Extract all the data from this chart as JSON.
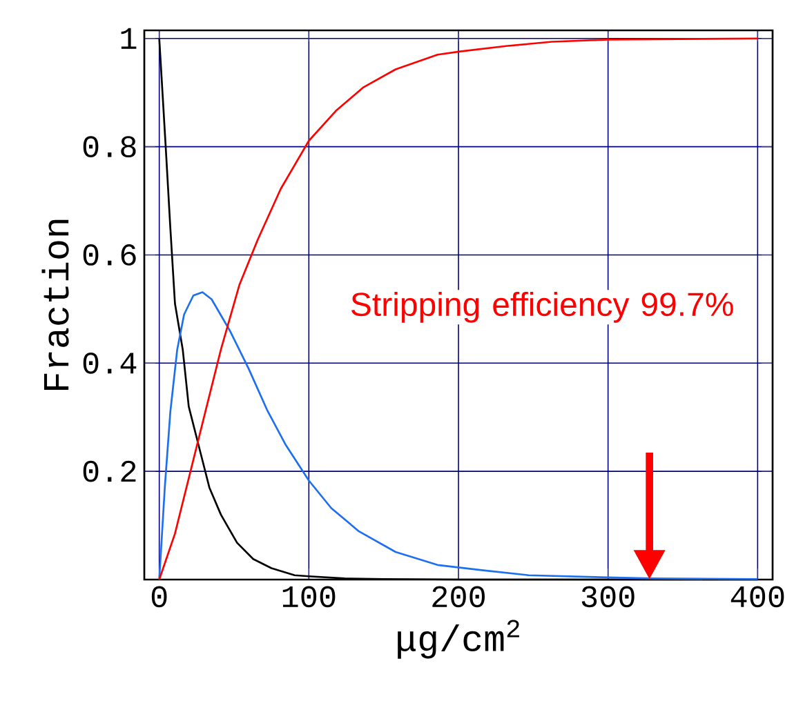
{
  "chart_data": {
    "type": "line",
    "xlabel": "μg/cm$^{2}$",
    "ylabel": "Fraction",
    "xlim": [
      -10,
      410
    ],
    "ylim": [
      0,
      1.015
    ],
    "xticks": [
      0,
      100,
      200,
      300,
      400
    ],
    "yticks": [
      0.2,
      0.4,
      0.6,
      0.8,
      1
    ],
    "grid": true,
    "marker": "none",
    "line_style": "solid",
    "series": [
      {
        "color": "#000000",
        "x": [
          0,
          4.3,
          7.4,
          10.5,
          15.7,
          19.7,
          24.3,
          28.9,
          33.5,
          41.2,
          52,
          62.8,
          75,
          90.5,
          100,
          124,
          150,
          200,
          300,
          400
        ],
        "values": [
          1,
          0.8,
          0.65,
          0.51,
          0.425,
          0.32,
          0.27,
          0.22,
          0.17,
          0.12,
          0.068,
          0.038,
          0.021,
          0.008,
          0.006,
          0.002,
          0.001,
          0,
          0,
          0
        ]
      },
      {
        "color": "#1e6ff0",
        "x": [
          0,
          3.7,
          7.4,
          12,
          16.6,
          22.8,
          28.9,
          35,
          47.4,
          59.7,
          72,
          84.3,
          100,
          115,
          133.5,
          158,
          186,
          216.6,
          247,
          300,
          330,
          400
        ],
        "values": [
          0,
          0.17,
          0.31,
          0.425,
          0.49,
          0.525,
          0.531,
          0.518,
          0.459,
          0.39,
          0.314,
          0.25,
          0.183,
          0.132,
          0.089,
          0.051,
          0.027,
          0.017,
          0.008,
          0.004,
          0.002,
          0.001
        ]
      },
      {
        "color": "#ff0000",
        "x": [
          0,
          10.5,
          19.7,
          28.9,
          41.2,
          53.5,
          65.8,
          81.2,
          100,
          118,
          136.6,
          158,
          186,
          201,
          231.7,
          262.4,
          300,
          400
        ],
        "values": [
          0,
          0.085,
          0.187,
          0.289,
          0.425,
          0.544,
          0.628,
          0.722,
          0.811,
          0.866,
          0.91,
          0.943,
          0.97,
          0.976,
          0.986,
          0.994,
          0.998,
          1
        ]
      }
    ],
    "annotations": [
      "Stripping efficiency 99.7%"
    ]
  }
}
